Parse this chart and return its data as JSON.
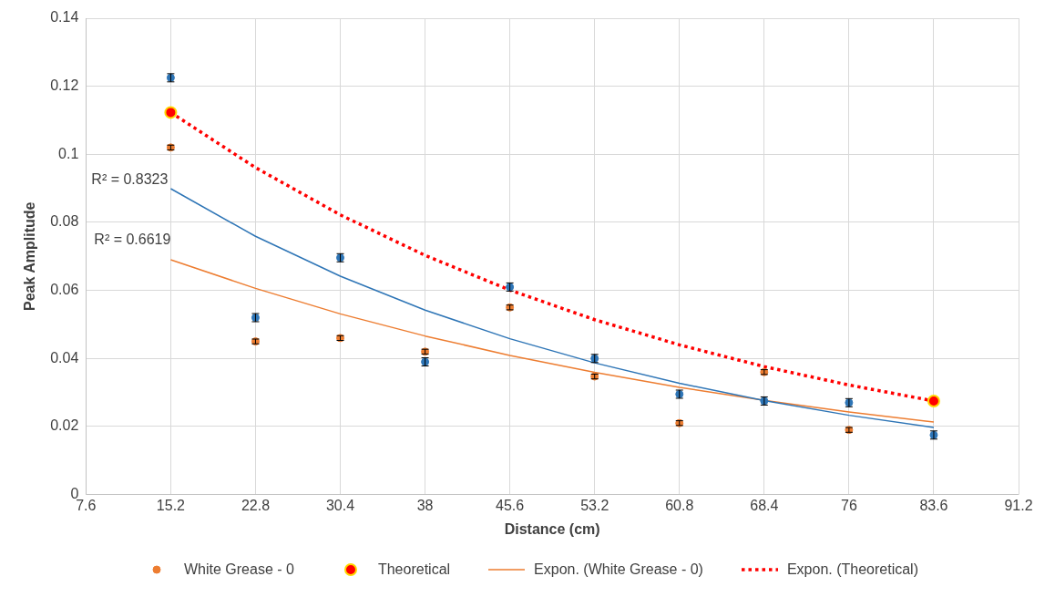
{
  "chart_data": {
    "type": "scatter",
    "xlabel": "Distance (cm)",
    "ylabel": "Peak Amplitude",
    "x": [
      15.2,
      22.8,
      30.4,
      38,
      45.6,
      53.2,
      60.8,
      68.4,
      76,
      83.6
    ],
    "xlim": [
      7.6,
      91.2
    ],
    "xticks": [
      7.6,
      15.2,
      22.8,
      30.4,
      38,
      45.6,
      53.2,
      60.8,
      68.4,
      76,
      83.6,
      91.2
    ],
    "ylim": [
      0,
      0.14
    ],
    "yticks": [
      0,
      0.02,
      0.04,
      0.06,
      0.08,
      0.1,
      0.12,
      0.14
    ],
    "grid": true,
    "legend": "bottom",
    "annotations": [
      "R² = 0.8323",
      "R² = 0.6619"
    ],
    "series": [
      {
        "marker": "circle",
        "color": "#2e75b6",
        "values": [
          0.1225,
          0.052,
          0.0696,
          0.039,
          0.061,
          0.04,
          0.0295,
          0.0275,
          0.027,
          0.0175
        ],
        "errors": [
          0.0012,
          0.0012,
          0.0012,
          0.0012,
          0.0012,
          0.0012,
          0.0012,
          0.0012,
          0.0012,
          0.0012
        ]
      },
      {
        "marker": "circle",
        "name": "White Grease - 0",
        "color": "#ed7d31",
        "values": [
          0.102,
          0.045,
          0.046,
          0.042,
          0.055,
          0.0347,
          0.021,
          0.036,
          0.019,
          null
        ],
        "errors": [
          0.0007,
          0.0007,
          0.0007,
          0.0007,
          0.0007,
          0.0007,
          0.0007,
          0.0007,
          0.0007,
          null
        ]
      },
      {
        "marker": "circle",
        "name": "Theoretical",
        "color": "#ff0000",
        "x": [
          15.2,
          83.6
        ],
        "values": [
          0.1123,
          0.0275
        ]
      },
      {
        "type": "line",
        "marker": "none",
        "color": "#2e75b6",
        "line_style": "solid",
        "values": [
          0.0899,
          0.0759,
          0.0642,
          0.0542,
          0.0458,
          0.0387,
          0.0327,
          0.0276,
          0.0233,
          0.0197
        ]
      },
      {
        "type": "line",
        "marker": "none",
        "name": "Expon. (White Grease - 0)",
        "color": "#ed7d31",
        "line_style": "solid",
        "values": [
          0.069,
          0.0606,
          0.0531,
          0.0466,
          0.0409,
          0.0359,
          0.0315,
          0.0277,
          0.0243,
          0.0213
        ]
      },
      {
        "type": "line",
        "marker": "none",
        "name": "Expon. (Theoretical)",
        "color": "#ff0000",
        "line_style": "dotted",
        "values": [
          0.1123,
          0.0961,
          0.0822,
          0.0703,
          0.0601,
          0.0514,
          0.044,
          0.0376,
          0.0322,
          0.0275
        ]
      }
    ]
  }
}
